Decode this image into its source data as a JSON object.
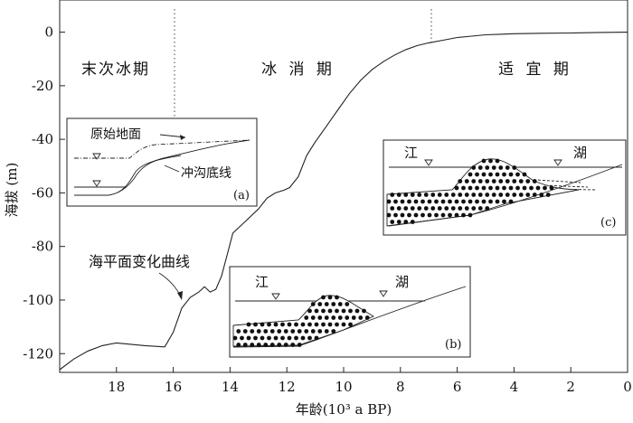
{
  "chart_data": {
    "type": "line",
    "xlabel": "年龄(10³ a BP)",
    "ylabel": "海拔 (m)",
    "xlim": [
      20,
      0
    ],
    "ylim": [
      -127,
      12
    ],
    "x_ticks": [
      18,
      16,
      14,
      12,
      10,
      8,
      6,
      4,
      2,
      0
    ],
    "y_ticks": [
      0,
      -20,
      -40,
      -60,
      -80,
      -100,
      -120
    ],
    "series": [
      {
        "x": [
          20,
          19.5,
          19.0,
          18.5,
          18.0,
          17.5,
          17.0,
          16.3,
          16.0,
          15.7,
          15.4,
          15.1,
          14.9,
          14.7,
          14.5,
          14.3,
          14.1,
          13.9,
          13.6,
          13.3,
          13.0,
          12.7,
          12.4,
          12.1,
          11.9,
          11.6,
          11.3,
          11.0,
          10.6,
          10.2,
          9.8,
          9.4,
          9.0,
          8.6,
          8.2,
          7.8,
          7.4,
          7.0,
          6.5,
          6.0,
          5.5,
          5.0,
          4.5,
          4.0,
          3.0,
          2.0,
          1.0,
          0.0
        ],
        "y": [
          -126,
          -122,
          -119,
          -117,
          -116,
          -116.5,
          -117,
          -117.5,
          -112,
          -103,
          -99,
          -97,
          -95,
          -97,
          -96,
          -91,
          -83,
          -75,
          -72,
          -69,
          -66,
          -62,
          -60,
          -59,
          -58,
          -54,
          -46,
          -41,
          -35,
          -29,
          -23,
          -18,
          -14,
          -11,
          -8.5,
          -6.5,
          -5,
          -4,
          -3,
          -2,
          -1.5,
          -1,
          -0.8,
          -0.6,
          -0.4,
          -0.3,
          -0.1,
          0
        ]
      }
    ],
    "periods": [
      {
        "label": "末次冰期",
        "from": 20,
        "to": 16
      },
      {
        "label": "冰 消 期",
        "from": 16,
        "to": 7
      },
      {
        "label": "适 宜 期",
        "from": 7,
        "to": 0
      }
    ],
    "boundaries": [
      16,
      7
    ],
    "annotations": {
      "curve_label": "海平面变化曲线"
    }
  },
  "insets": {
    "a": {
      "tag": "(a)",
      "original_ground": "原始地面",
      "gully_bottom": "冲沟底线"
    },
    "b": {
      "tag": "(b)",
      "river": "江",
      "lake": "湖"
    },
    "c": {
      "tag": "(c)",
      "river": "江",
      "lake": "湖"
    }
  }
}
